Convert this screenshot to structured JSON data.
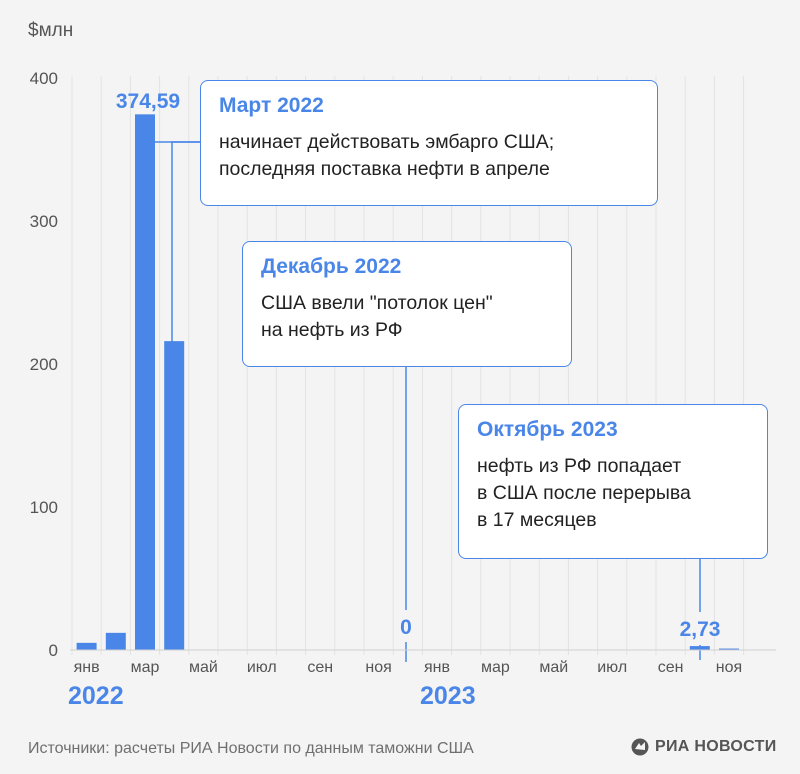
{
  "chart_data": {
    "type": "bar",
    "ylabel": "$млн",
    "ylim": [
      0,
      400
    ],
    "yticks": [
      0,
      100,
      200,
      300,
      400
    ],
    "categories": [
      "янв 2022",
      "фев 2022",
      "мар 2022",
      "апр 2022",
      "май 2022",
      "июн 2022",
      "июл 2022",
      "авг 2022",
      "сен 2022",
      "окт 2022",
      "ноя 2022",
      "дек 2022",
      "янв 2023",
      "фев 2023",
      "мар 2023",
      "апр 2023",
      "май 2023",
      "июн 2023",
      "июл 2023",
      "авг 2023",
      "сен 2023",
      "окт 2023",
      "ноя 2023"
    ],
    "values": [
      5,
      12,
      374.59,
      216,
      0,
      0,
      0,
      0,
      0,
      0,
      0,
      0,
      0,
      0,
      0,
      0,
      0,
      0,
      0,
      0,
      0,
      2.73,
      1
    ],
    "month_labels": [
      {
        "index": 0,
        "text": "янв"
      },
      {
        "index": 2,
        "text": "мар"
      },
      {
        "index": 4,
        "text": "май"
      },
      {
        "index": 6,
        "text": "июл"
      },
      {
        "index": 8,
        "text": "сен"
      },
      {
        "index": 10,
        "text": "ноя"
      },
      {
        "index": 12,
        "text": "янв"
      },
      {
        "index": 14,
        "text": "мар"
      },
      {
        "index": 16,
        "text": "май"
      },
      {
        "index": 18,
        "text": "июл"
      },
      {
        "index": 20,
        "text": "сен"
      },
      {
        "index": 22,
        "text": "ноя"
      }
    ],
    "year_labels": [
      {
        "index": 0,
        "text": "2022"
      },
      {
        "index": 12,
        "text": "2023"
      }
    ],
    "data_labels": [
      {
        "index": 2,
        "text": "374,59"
      },
      {
        "index": 11,
        "text": "0"
      },
      {
        "index": 21,
        "text": "2,73"
      }
    ],
    "bar_color": "#4a86e8",
    "grid": "vertical"
  },
  "callouts": {
    "c1": {
      "title": "Март 2022",
      "line1": "начинает действовать эмбарго США;",
      "line2": "последняя поставка нефти в апреле"
    },
    "c2": {
      "title": "Декабрь 2022",
      "line1": "США ввели \"потолок цен\"",
      "line2": "на нефть из РФ"
    },
    "c3": {
      "title": "Октябрь 2023",
      "line1": "нефть из РФ попадает",
      "line2": "в США после перерыва",
      "line3": "в 17 месяцев"
    }
  },
  "footer": {
    "source": "Источники: расчеты РИА Новости по данным таможни США",
    "logo": "РИА НОВОСТИ"
  }
}
